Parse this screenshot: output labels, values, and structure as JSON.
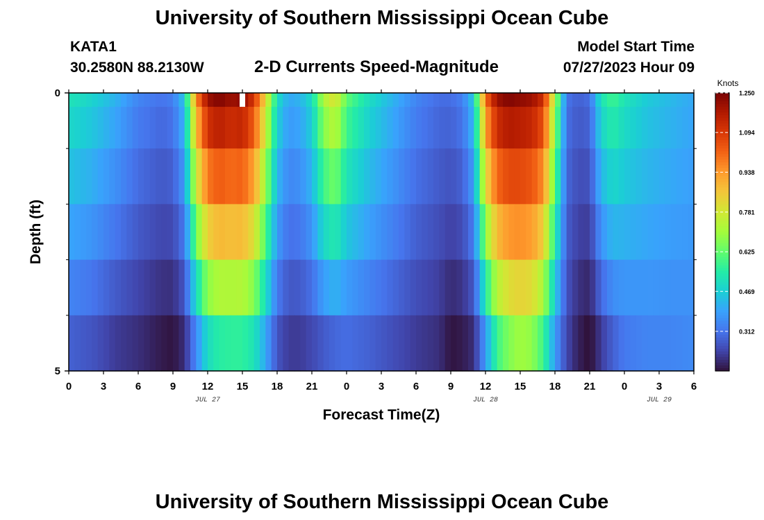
{
  "header": {
    "title": "University of Southern Mississippi Ocean Cube",
    "station": "KATA1",
    "coords": "30.2580N  88.2130W",
    "product": "2-D Currents Speed-Magnitude",
    "model_label": "Model Start Time",
    "model_time": "07/27/2023 Hour 09"
  },
  "footer": {
    "title": "University of Southern Mississippi Ocean Cube"
  },
  "colors": {
    "background": "#ffffff",
    "colormap": [
      "#30123b",
      "#4145ab",
      "#4675ed",
      "#39a2fc",
      "#1bcfd4",
      "#24eca6",
      "#61fc6c",
      "#a4fc3b",
      "#d1e834",
      "#f3c63a",
      "#fe9b2d",
      "#f36315",
      "#d93806",
      "#b11901",
      "#7a0403"
    ]
  },
  "chart_data": {
    "type": "heatmap",
    "xlabel": "Forecast Time(Z)",
    "ylabel": "Depth (ft)",
    "x_tick_labels": [
      "0",
      "3",
      "6",
      "9",
      "12",
      "15",
      "18",
      "21",
      "0",
      "3",
      "6",
      "9",
      "12",
      "15",
      "18",
      "21",
      "0",
      "3",
      "6"
    ],
    "x_range_hours": [
      0,
      54
    ],
    "x_step_hours": 3,
    "date_labels": [
      {
        "label": "JUL 27",
        "hour": 12
      },
      {
        "label": "JUL 28",
        "hour": 36
      },
      {
        "label": "JUL 29",
        "hour": 51
      }
    ],
    "y_tick_labels": [
      "0",
      "5"
    ],
    "y_range_ft": [
      0,
      5
    ],
    "y_minor_ticks_ft": [
      1,
      2,
      3,
      4
    ],
    "depth_levels_ft": [
      0,
      0.5,
      1.5,
      2.5,
      3.5,
      4.5
    ],
    "colorbar": {
      "unit": "Knots",
      "min": 0.156,
      "max": 1.25,
      "tick_labels": [
        "1.250",
        "1.094",
        "0.938",
        "0.781",
        "0.625",
        "0.469",
        "0.312"
      ],
      "tick_values": [
        1.25,
        1.094,
        0.938,
        0.781,
        0.625,
        0.469,
        0.312
      ]
    },
    "profile_hours": [
      0,
      2,
      4,
      6,
      8,
      9,
      10,
      11,
      12,
      13,
      14,
      15,
      16,
      17,
      18,
      19,
      20,
      21,
      22,
      23,
      24,
      26,
      28,
      30,
      32,
      33,
      34,
      35,
      36,
      37,
      38,
      39,
      40,
      41,
      42,
      43,
      44,
      45,
      46,
      47,
      48,
      50,
      52,
      54
    ],
    "surface_speed_knots": [
      0.52,
      0.48,
      0.42,
      0.34,
      0.31,
      0.33,
      0.45,
      0.95,
      1.2,
      1.24,
      1.2,
      1.22,
      1.1,
      0.82,
      0.5,
      0.4,
      0.42,
      0.5,
      0.72,
      0.8,
      0.62,
      0.5,
      0.42,
      0.34,
      0.3,
      0.3,
      0.33,
      0.46,
      1.0,
      1.2,
      1.24,
      1.22,
      1.2,
      1.12,
      0.72,
      0.31,
      0.28,
      0.3,
      0.52,
      0.58,
      0.52,
      0.46,
      0.43,
      0.4
    ],
    "bottom_speed_knots": [
      0.28,
      0.26,
      0.22,
      0.2,
      0.17,
      0.16,
      0.2,
      0.35,
      0.5,
      0.55,
      0.56,
      0.56,
      0.52,
      0.4,
      0.26,
      0.22,
      0.22,
      0.24,
      0.27,
      0.29,
      0.3,
      0.28,
      0.25,
      0.22,
      0.2,
      0.16,
      0.17,
      0.2,
      0.38,
      0.58,
      0.66,
      0.7,
      0.68,
      0.58,
      0.38,
      0.24,
      0.18,
      0.15,
      0.22,
      0.28,
      0.32,
      0.34,
      0.34,
      0.35
    ],
    "missing_cell": {
      "hour": 15,
      "depth_ft": 0
    }
  }
}
